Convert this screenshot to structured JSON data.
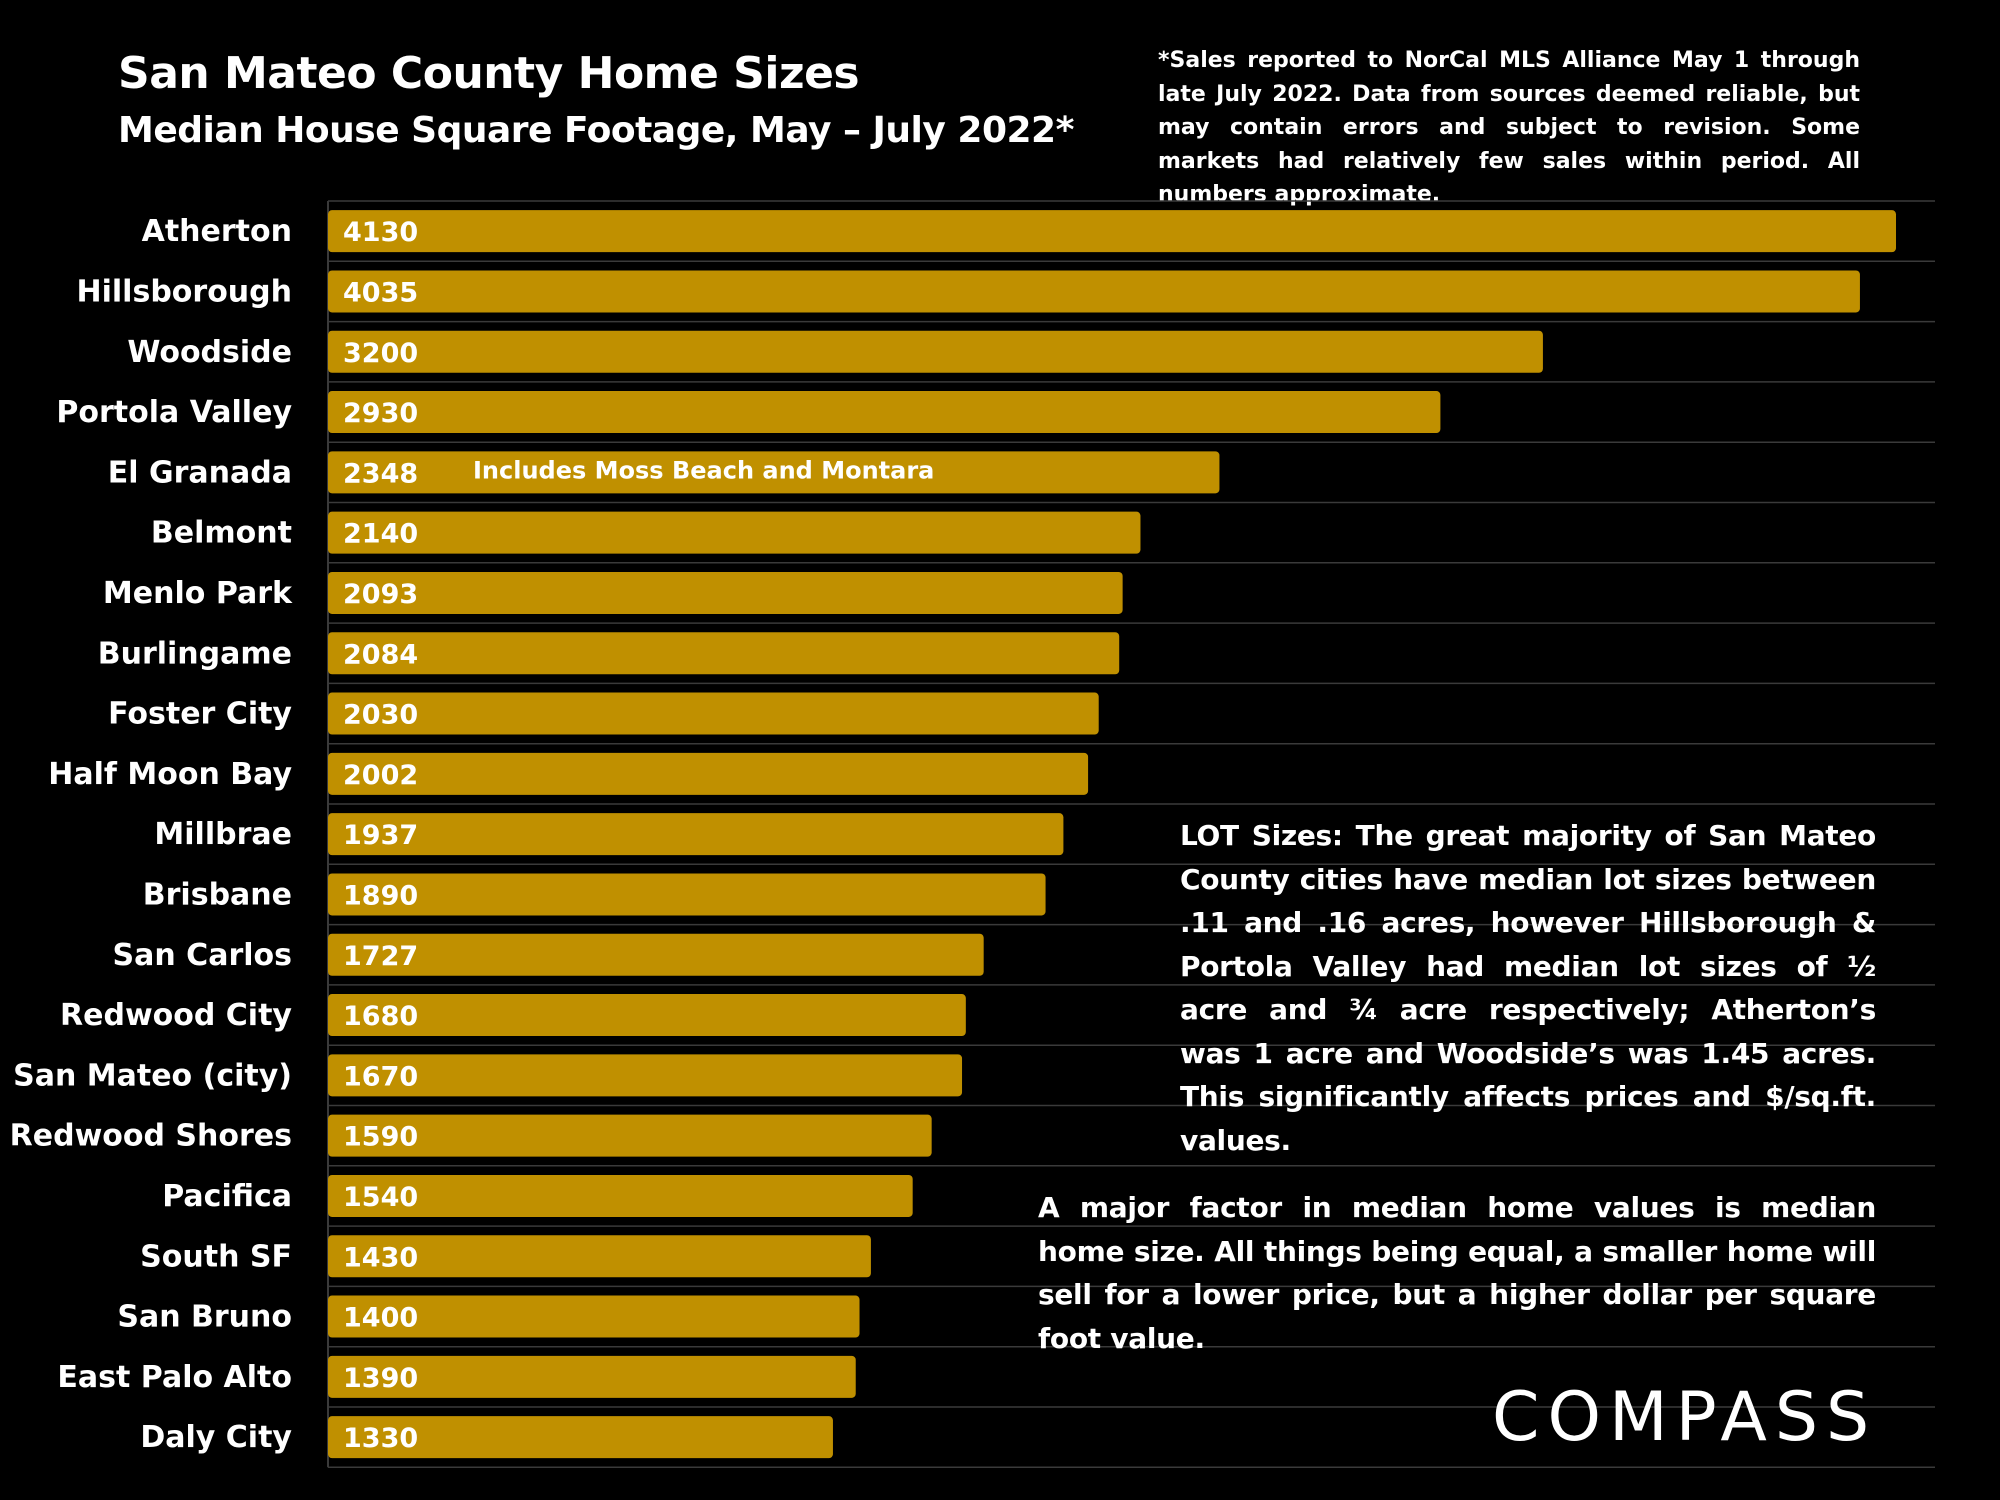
{
  "chart_data": {
    "type": "bar",
    "orientation": "horizontal",
    "title": "San Mateo County Home Sizes",
    "subtitle": "Median House Square Footage, May – July 2022*",
    "xlabel": "",
    "ylabel": "",
    "xlim": [
      0,
      4200
    ],
    "grid": true,
    "categories": [
      "Atherton",
      "Hillsborough",
      "Woodside",
      "Portola Valley",
      "El Granada",
      "Belmont",
      "Menlo Park",
      "Burlingame",
      "Foster City",
      "Half Moon Bay",
      "Millbrae",
      "Brisbane",
      "San Carlos",
      "Redwood City",
      "San Mateo (city)",
      "Redwood Shores",
      "Pacifica",
      "South SF",
      "San Bruno",
      "East Palo Alto",
      "Daly City"
    ],
    "values": [
      4130,
      4035,
      3200,
      2930,
      2348,
      2140,
      2093,
      2084,
      2030,
      2002,
      1937,
      1890,
      1727,
      1680,
      1670,
      1590,
      1540,
      1430,
      1400,
      1390,
      1330
    ],
    "data_labels": [
      "4130",
      "4035",
      "3200",
      "2930",
      "2348",
      "2140",
      "2093",
      "2084",
      "2030",
      "2002",
      "1937",
      "1890",
      "1727",
      "1680",
      "1670",
      "1590",
      "1540",
      "1430",
      "1400",
      "1390",
      "1330"
    ],
    "annotations": [
      {
        "category": "El Granada",
        "text": "Includes Moss Beach and Montara"
      }
    ],
    "bar_color": "#C09000"
  },
  "footnote": "*Sales reported to NorCal MLS Alliance May 1 through late July 2022. Data from sources deemed reliable, but may contain errors and subject to revision. Some markets had relatively few sales within period. All numbers approximate.",
  "notes": {
    "lot_sizes": "LOT Sizes: The great majority of San Mateo County cities have median lot sizes between .11 and .16 acres, however Hillsborough & Portola Valley had median lot sizes of ½ acre and ¾ acre respectively; Atherton’s was 1 acre and Woodside’s was 1.45 acres. This significantly affects prices and $/sq.ft. values.",
    "major_factor": "A major factor in median home values is median home size. All things being equal, a smaller home will sell for a lower price, but a higher dollar per square foot value."
  },
  "logo": "COMPASS",
  "colors": {
    "background": "#000000",
    "bar": "#C09000",
    "text": "#FFFFFF",
    "grid": "#3a3a3a"
  }
}
